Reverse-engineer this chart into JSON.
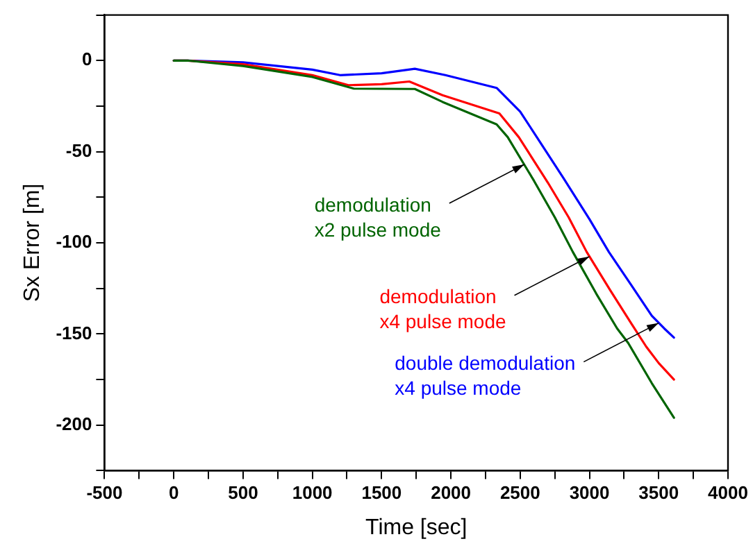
{
  "chart_data": {
    "type": "line",
    "xlabel": "Time [sec]",
    "ylabel": "Sx Error [m]",
    "xlim": [
      -500,
      4000
    ],
    "xticks": [
      -500,
      {
        "value": -250,
        "label": null
      },
      0,
      {
        "value": 250,
        "label": null
      },
      500,
      {
        "value": 750,
        "label": null
      },
      1000,
      {
        "value": 1250,
        "label": null
      },
      1500,
      {
        "value": 1750,
        "label": null
      },
      2000,
      {
        "value": 2250,
        "label": null
      },
      2500,
      {
        "value": 2750,
        "label": null
      },
      3000,
      {
        "value": 3250,
        "label": null
      },
      3500,
      {
        "value": 3750,
        "label": null
      },
      4000
    ],
    "ylim": [
      -225,
      25
    ],
    "yticks": [
      {
        "value": -225,
        "label": null
      },
      -200,
      {
        "value": -175,
        "label": null
      },
      -150,
      {
        "value": -125,
        "label": null
      },
      -100,
      {
        "value": -75,
        "label": null
      },
      -50,
      {
        "value": -25,
        "label": null
      },
      0,
      {
        "value": 25,
        "label": null
      }
    ],
    "grid": false,
    "legend": false,
    "marker": "none",
    "line_style": "solid",
    "series": [
      {
        "color": "#006400",
        "x": [
          0,
          100,
          500,
          1000,
          1300,
          1500,
          1740,
          1940,
          2330,
          2410,
          2600,
          2750,
          2880,
          3050,
          3200,
          3280,
          3450,
          3610
        ],
        "values": [
          0,
          0,
          -3,
          -9,
          -15.4,
          -15.5,
          -15.6,
          -22.7,
          -35,
          -42,
          -66,
          -86,
          -105,
          -128,
          -147,
          -155,
          -177,
          -196
        ]
      },
      {
        "color": "#ff0000",
        "x": [
          0,
          100,
          500,
          1000,
          1260,
          1500,
          1700,
          1940,
          2350,
          2490,
          2700,
          2850,
          2980,
          3150,
          3300,
          3410,
          3500,
          3610
        ],
        "values": [
          0,
          0,
          -2,
          -8,
          -13.5,
          -13,
          -11.5,
          -19,
          -29,
          -42,
          -67,
          -86,
          -105,
          -126,
          -144,
          -157,
          -166,
          -175
        ]
      },
      {
        "color": "#0000ff",
        "x": [
          0,
          100,
          500,
          1000,
          1200,
          1500,
          1740,
          1960,
          2330,
          2500,
          2620,
          2800,
          3000,
          3140,
          3300,
          3450,
          3540,
          3610
        ],
        "values": [
          0,
          0,
          -1,
          -5,
          -8,
          -7,
          -4.5,
          -8,
          -15,
          -28,
          -42,
          -63,
          -87,
          -105,
          -123,
          -140,
          -147,
          -152
        ]
      }
    ],
    "annotations": [
      {
        "text": "demodulation\nx2 pulse mode",
        "x": 2530,
        "y": -57
      },
      {
        "text": "demodulation\nx4 pulse mode",
        "x": 3000,
        "y": -107.5
      },
      {
        "text": "double demodulation\nx4 pulse mode",
        "x": 3500,
        "y": -144
      }
    ]
  }
}
